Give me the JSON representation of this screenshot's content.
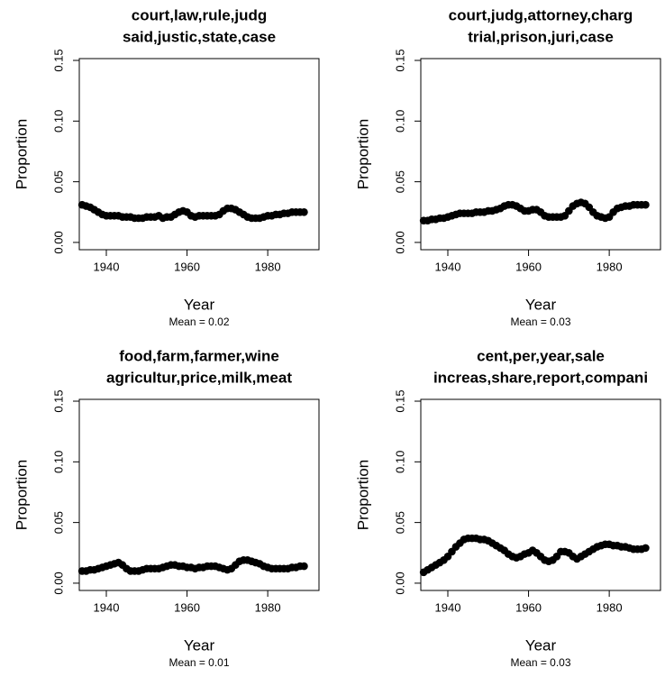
{
  "chart_data": [
    {
      "type": "line",
      "title": [
        "court,law,rule,judg",
        "said,justic,state,case"
      ],
      "xlabel": "Year",
      "ylabel": "Proportion",
      "subtitle": "Mean =  0.02",
      "color": "#000000",
      "x": [
        1934,
        1935,
        1936,
        1937,
        1938,
        1939,
        1940,
        1941,
        1942,
        1943,
        1944,
        1945,
        1946,
        1947,
        1948,
        1949,
        1950,
        1951,
        1952,
        1953,
        1954,
        1955,
        1956,
        1957,
        1958,
        1959,
        1960,
        1961,
        1962,
        1963,
        1964,
        1965,
        1966,
        1967,
        1968,
        1969,
        1970,
        1971,
        1972,
        1973,
        1974,
        1975,
        1976,
        1977,
        1978,
        1979,
        1980,
        1981,
        1982,
        1983,
        1984,
        1985,
        1986,
        1987,
        1988,
        1989
      ],
      "values": [
        0.031,
        0.03,
        0.029,
        0.027,
        0.025,
        0.023,
        0.022,
        0.022,
        0.022,
        0.022,
        0.021,
        0.021,
        0.021,
        0.02,
        0.02,
        0.02,
        0.021,
        0.021,
        0.021,
        0.022,
        0.02,
        0.021,
        0.021,
        0.023,
        0.025,
        0.026,
        0.025,
        0.022,
        0.021,
        0.022,
        0.022,
        0.022,
        0.022,
        0.022,
        0.023,
        0.026,
        0.028,
        0.028,
        0.027,
        0.025,
        0.023,
        0.021,
        0.02,
        0.02,
        0.02,
        0.021,
        0.022,
        0.022,
        0.023,
        0.023,
        0.024,
        0.024,
        0.025,
        0.025,
        0.025,
        0.025
      ],
      "xlim": [
        1933.3,
        1992.7
      ],
      "ylim": [
        -0.006,
        0.1515
      ],
      "xticks": [
        1940,
        1960,
        1980
      ],
      "yticks": [
        {
          "value": 0,
          "label": "0.00"
        },
        {
          "value": 0.05,
          "label": "0.05"
        },
        {
          "value": 0.1,
          "label": "0.10"
        },
        0.15
      ]
    },
    {
      "type": "line",
      "title": [
        "court,judg,attorney,charg",
        "trial,prison,juri,case"
      ],
      "xlabel": "Year",
      "ylabel": "Proportion",
      "subtitle": "Mean =  0.03",
      "color": "#000000",
      "x": [
        1934,
        1935,
        1936,
        1937,
        1938,
        1939,
        1940,
        1941,
        1942,
        1943,
        1944,
        1945,
        1946,
        1947,
        1948,
        1949,
        1950,
        1951,
        1952,
        1953,
        1954,
        1955,
        1956,
        1957,
        1958,
        1959,
        1960,
        1961,
        1962,
        1963,
        1964,
        1965,
        1966,
        1967,
        1968,
        1969,
        1970,
        1971,
        1972,
        1973,
        1974,
        1975,
        1976,
        1977,
        1978,
        1979,
        1980,
        1981,
        1982,
        1983,
        1984,
        1985,
        1986,
        1987,
        1988,
        1989
      ],
      "values": [
        0.018,
        0.018,
        0.019,
        0.019,
        0.02,
        0.02,
        0.021,
        0.022,
        0.023,
        0.024,
        0.024,
        0.024,
        0.024,
        0.025,
        0.025,
        0.025,
        0.026,
        0.026,
        0.027,
        0.028,
        0.03,
        0.031,
        0.031,
        0.03,
        0.028,
        0.026,
        0.026,
        0.027,
        0.027,
        0.025,
        0.022,
        0.021,
        0.021,
        0.021,
        0.021,
        0.022,
        0.026,
        0.03,
        0.032,
        0.033,
        0.032,
        0.029,
        0.025,
        0.022,
        0.021,
        0.02,
        0.021,
        0.025,
        0.028,
        0.029,
        0.03,
        0.03,
        0.031,
        0.031,
        0.031,
        0.031
      ],
      "xlim": [
        1933.3,
        1992.7
      ],
      "ylim": [
        -0.006,
        0.1515
      ],
      "xticks": [
        1940,
        1960,
        1980
      ],
      "yticks": [
        {
          "value": 0,
          "label": "0.00"
        },
        {
          "value": 0.05,
          "label": "0.05"
        },
        {
          "value": 0.1,
          "label": "0.10"
        },
        0.15
      ]
    },
    {
      "type": "line",
      "title": [
        "food,farm,farmer,wine",
        "agricultur,price,milk,meat"
      ],
      "xlabel": "Year",
      "ylabel": "Proportion",
      "subtitle": "Mean =  0.01",
      "color": "#000000",
      "x": [
        1934,
        1935,
        1936,
        1937,
        1938,
        1939,
        1940,
        1941,
        1942,
        1943,
        1944,
        1945,
        1946,
        1947,
        1948,
        1949,
        1950,
        1951,
        1952,
        1953,
        1954,
        1955,
        1956,
        1957,
        1958,
        1959,
        1960,
        1961,
        1962,
        1963,
        1964,
        1965,
        1966,
        1967,
        1968,
        1969,
        1970,
        1971,
        1972,
        1973,
        1974,
        1975,
        1976,
        1977,
        1978,
        1979,
        1980,
        1981,
        1982,
        1983,
        1984,
        1985,
        1986,
        1987,
        1988,
        1989
      ],
      "values": [
        0.01,
        0.01,
        0.011,
        0.011,
        0.012,
        0.013,
        0.014,
        0.015,
        0.016,
        0.017,
        0.015,
        0.012,
        0.01,
        0.01,
        0.01,
        0.011,
        0.012,
        0.012,
        0.012,
        0.012,
        0.013,
        0.014,
        0.015,
        0.015,
        0.014,
        0.014,
        0.013,
        0.013,
        0.012,
        0.013,
        0.013,
        0.014,
        0.014,
        0.014,
        0.013,
        0.012,
        0.011,
        0.012,
        0.015,
        0.018,
        0.019,
        0.019,
        0.018,
        0.017,
        0.016,
        0.014,
        0.013,
        0.012,
        0.012,
        0.012,
        0.012,
        0.012,
        0.013,
        0.013,
        0.014,
        0.014
      ],
      "xlim": [
        1933.3,
        1992.7
      ],
      "ylim": [
        -0.006,
        0.1515
      ],
      "xticks": [
        1940,
        1960,
        1980
      ],
      "yticks": [
        {
          "value": 0,
          "label": "0.00"
        },
        {
          "value": 0.05,
          "label": "0.05"
        },
        {
          "value": 0.1,
          "label": "0.10"
        },
        0.15
      ]
    },
    {
      "type": "line",
      "title": [
        "cent,per,year,sale",
        "increas,share,report,compani"
      ],
      "xlabel": "Year",
      "ylabel": "Proportion",
      "subtitle": "Mean =  0.03",
      "color": "#000000",
      "x": [
        1934,
        1935,
        1936,
        1937,
        1938,
        1939,
        1940,
        1941,
        1942,
        1943,
        1944,
        1945,
        1946,
        1947,
        1948,
        1949,
        1950,
        1951,
        1952,
        1953,
        1954,
        1955,
        1956,
        1957,
        1958,
        1959,
        1960,
        1961,
        1962,
        1963,
        1964,
        1965,
        1966,
        1967,
        1968,
        1969,
        1970,
        1971,
        1972,
        1973,
        1974,
        1975,
        1976,
        1977,
        1978,
        1979,
        1980,
        1981,
        1982,
        1983,
        1984,
        1985,
        1986,
        1987,
        1988,
        1989
      ],
      "values": [
        0.009,
        0.011,
        0.013,
        0.015,
        0.017,
        0.019,
        0.022,
        0.026,
        0.03,
        0.033,
        0.036,
        0.037,
        0.037,
        0.037,
        0.036,
        0.036,
        0.035,
        0.033,
        0.031,
        0.029,
        0.027,
        0.024,
        0.022,
        0.021,
        0.022,
        0.024,
        0.025,
        0.027,
        0.025,
        0.022,
        0.019,
        0.018,
        0.019,
        0.022,
        0.026,
        0.026,
        0.025,
        0.022,
        0.02,
        0.022,
        0.024,
        0.026,
        0.028,
        0.03,
        0.031,
        0.032,
        0.032,
        0.031,
        0.031,
        0.03,
        0.03,
        0.029,
        0.028,
        0.028,
        0.028,
        0.029
      ],
      "xlim": [
        1933.3,
        1992.7
      ],
      "ylim": [
        -0.006,
        0.1515
      ],
      "xticks": [
        1940,
        1960,
        1980
      ],
      "yticks": [
        {
          "value": 0,
          "label": "0.00"
        },
        {
          "value": 0.05,
          "label": "0.05"
        },
        {
          "value": 0.1,
          "label": "0.10"
        },
        0.15
      ]
    }
  ]
}
